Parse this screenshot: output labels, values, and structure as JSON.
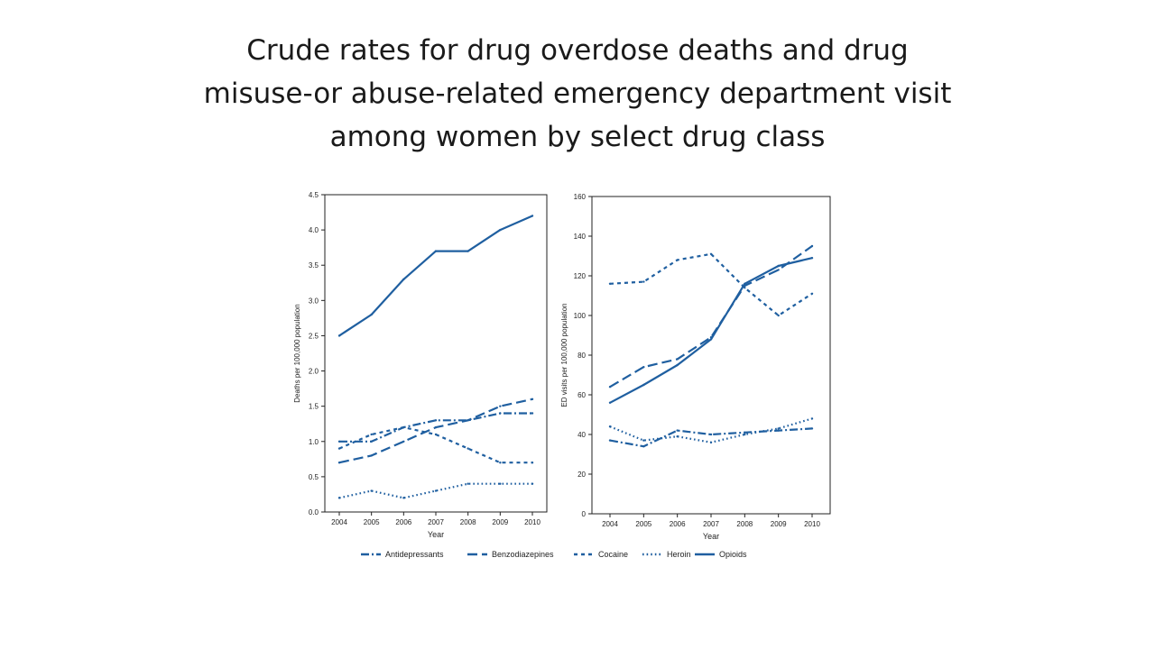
{
  "slide": {
    "title_lines": [
      "Crude rates for drug overdose deaths and drug",
      "misuse-or abuse-related emergency department visit",
      "among women by select drug class"
    ]
  },
  "colors": {
    "line": "#1f5fa0",
    "axis": "#222222",
    "text": "#222222"
  },
  "legend": [
    {
      "name": "Antidepressants",
      "dash": "dashdot"
    },
    {
      "name": "Benzodiazepines",
      "dash": "longdash"
    },
    {
      "name": "Cocaine",
      "dash": "shortdash"
    },
    {
      "name": "Heroin",
      "dash": "dot"
    },
    {
      "name": "Opioids",
      "dash": "solid"
    }
  ],
  "chart_data": [
    {
      "type": "line",
      "title": "",
      "xlabel": "Year",
      "ylabel": "Deaths per 100,000 population",
      "x": [
        "2004",
        "2005",
        "2006",
        "2007",
        "2008",
        "2009",
        "2010"
      ],
      "ylim": [
        0,
        4.5
      ],
      "yticks": [
        "0.0",
        "0.5",
        "1.0",
        "1.5",
        "2.0",
        "2.5",
        "3.0",
        "3.5",
        "4.0",
        "4.5"
      ],
      "series": [
        {
          "name": "Antidepressants",
          "values": [
            1.0,
            1.0,
            1.2,
            1.3,
            1.3,
            1.4,
            1.4
          ]
        },
        {
          "name": "Benzodiazepines",
          "values": [
            0.7,
            0.8,
            1.0,
            1.2,
            1.3,
            1.5,
            1.6
          ]
        },
        {
          "name": "Cocaine",
          "values": [
            0.9,
            1.1,
            1.2,
            1.1,
            0.9,
            0.7,
            0.7
          ]
        },
        {
          "name": "Heroin",
          "values": [
            0.2,
            0.3,
            0.2,
            0.3,
            0.4,
            0.4,
            0.4
          ]
        },
        {
          "name": "Opioids",
          "values": [
            2.5,
            2.8,
            3.3,
            3.7,
            3.7,
            4.0,
            4.2
          ]
        }
      ]
    },
    {
      "type": "line",
      "title": "",
      "xlabel": "Year",
      "ylabel": "ED visits per 100,000 population",
      "x": [
        "2004",
        "2005",
        "2006",
        "2007",
        "2008",
        "2009",
        "2010"
      ],
      "ylim": [
        0,
        160
      ],
      "yticks": [
        "0",
        "20",
        "40",
        "60",
        "80",
        "100",
        "120",
        "140",
        "160"
      ],
      "series": [
        {
          "name": "Antidepressants",
          "values": [
            37,
            34,
            42,
            40,
            41,
            42,
            43
          ]
        },
        {
          "name": "Benzodiazepines",
          "values": [
            64,
            74,
            78,
            89,
            115,
            123,
            135
          ]
        },
        {
          "name": "Cocaine",
          "values": [
            116,
            117,
            128,
            131,
            114,
            100,
            111
          ]
        },
        {
          "name": "Heroin",
          "values": [
            44,
            37,
            39,
            36,
            40,
            43,
            48
          ]
        },
        {
          "name": "Opioids",
          "values": [
            56,
            65,
            75,
            88,
            116,
            125,
            129
          ]
        }
      ]
    }
  ]
}
